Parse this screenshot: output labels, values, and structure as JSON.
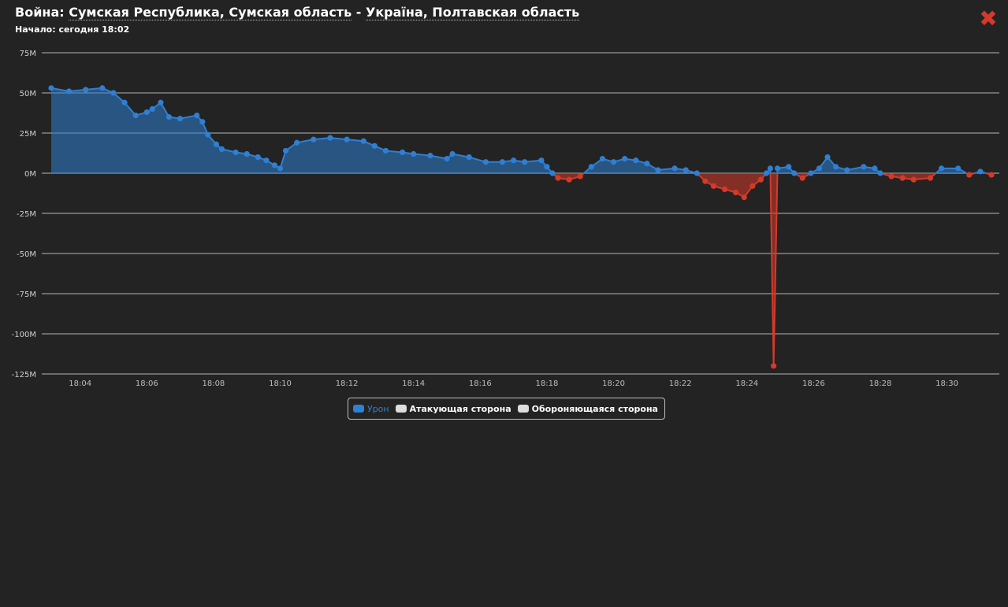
{
  "header": {
    "title_prefix": "Война: ",
    "attacker": "Сумская Республика, Сумская область",
    "separator": " - ",
    "defender": "Україна, Полтавская область",
    "start_text": "Начало: сегодня 18:02"
  },
  "close_icon": "close-x-icon",
  "colors": {
    "background": "#232323",
    "positive": "#2f7fd3",
    "negative": "#d43a2a",
    "grid": "#d0d0d0",
    "text": "#ffffff"
  },
  "legend": [
    {
      "label": "Урон",
      "color": "#2f7fd3"
    },
    {
      "label": "Атакующая сторона",
      "color": "#dddddd"
    },
    {
      "label": "Обороняющаяся сторона",
      "color": "#dddddd"
    }
  ],
  "chart_data": {
    "type": "area",
    "xlabel": "",
    "ylabel": "",
    "x_ticks": [
      "18:04",
      "18:06",
      "18:08",
      "18:10",
      "18:12",
      "18:14",
      "18:16",
      "18:18",
      "18:20",
      "18:22",
      "18:24",
      "18:26",
      "18:28",
      "18:30"
    ],
    "y_ticks": [
      "75M",
      "50M",
      "25M",
      "0M",
      "-25M",
      "-50M",
      "-75M",
      "-100M",
      "-125M"
    ],
    "xlim": [
      "18:03:08",
      "18:31:20"
    ],
    "ylim": [
      -125,
      75
    ],
    "grid": true,
    "legend_position": "bottom-center",
    "series": [
      {
        "name": "Урон",
        "units": "M",
        "points": [
          [
            "18:03:08",
            53
          ],
          [
            "18:03:40",
            51
          ],
          [
            "18:04:10",
            52
          ],
          [
            "18:04:40",
            53
          ],
          [
            "18:05:00",
            50
          ],
          [
            "18:05:20",
            44
          ],
          [
            "18:05:40",
            36
          ],
          [
            "18:06:00",
            38
          ],
          [
            "18:06:10",
            40
          ],
          [
            "18:06:25",
            44
          ],
          [
            "18:06:40",
            35
          ],
          [
            "18:07:00",
            34
          ],
          [
            "18:07:30",
            36
          ],
          [
            "18:07:40",
            32
          ],
          [
            "18:07:50",
            24
          ],
          [
            "18:08:05",
            18
          ],
          [
            "18:08:15",
            15
          ],
          [
            "18:08:40",
            13
          ],
          [
            "18:09:00",
            12
          ],
          [
            "18:09:20",
            10
          ],
          [
            "18:09:35",
            8
          ],
          [
            "18:09:50",
            5
          ],
          [
            "18:10:00",
            3
          ],
          [
            "18:10:10",
            14
          ],
          [
            "18:10:30",
            19
          ],
          [
            "18:11:00",
            21
          ],
          [
            "18:11:30",
            22
          ],
          [
            "18:12:00",
            21
          ],
          [
            "18:12:30",
            20
          ],
          [
            "18:12:50",
            17
          ],
          [
            "18:13:10",
            14
          ],
          [
            "18:13:40",
            13
          ],
          [
            "18:14:00",
            12
          ],
          [
            "18:14:30",
            11
          ],
          [
            "18:15:00",
            9
          ],
          [
            "18:15:10",
            12
          ],
          [
            "18:15:40",
            10
          ],
          [
            "18:16:10",
            7
          ],
          [
            "18:16:40",
            7
          ],
          [
            "18:17:00",
            8
          ],
          [
            "18:17:20",
            7
          ],
          [
            "18:17:50",
            8
          ],
          [
            "18:18:00",
            4
          ],
          [
            "18:18:10",
            0
          ],
          [
            "18:18:20",
            -3
          ],
          [
            "18:18:40",
            -4
          ],
          [
            "18:19:00",
            -2
          ],
          [
            "18:19:20",
            4
          ],
          [
            "18:19:40",
            9
          ],
          [
            "18:20:00",
            7
          ],
          [
            "18:20:20",
            9
          ],
          [
            "18:20:40",
            8
          ],
          [
            "18:21:00",
            6
          ],
          [
            "18:21:20",
            2
          ],
          [
            "18:21:50",
            3
          ],
          [
            "18:22:10",
            2
          ],
          [
            "18:22:30",
            0
          ],
          [
            "18:22:45",
            -5
          ],
          [
            "18:23:00",
            -8
          ],
          [
            "18:23:20",
            -10
          ],
          [
            "18:23:40",
            -12
          ],
          [
            "18:23:55",
            -15
          ],
          [
            "18:24:10",
            -8
          ],
          [
            "18:24:25",
            -4
          ],
          [
            "18:24:35",
            0
          ],
          [
            "18:24:42",
            3
          ],
          [
            "18:24:48",
            -120
          ],
          [
            "18:24:55",
            3
          ],
          [
            "18:25:15",
            4
          ],
          [
            "18:25:25",
            0
          ],
          [
            "18:25:40",
            -3
          ],
          [
            "18:25:55",
            0
          ],
          [
            "18:26:10",
            3
          ],
          [
            "18:26:25",
            10
          ],
          [
            "18:26:40",
            4
          ],
          [
            "18:27:00",
            2
          ],
          [
            "18:27:30",
            4
          ],
          [
            "18:27:50",
            3
          ],
          [
            "18:28:00",
            0
          ],
          [
            "18:28:20",
            -2
          ],
          [
            "18:28:40",
            -3
          ],
          [
            "18:29:00",
            -4
          ],
          [
            "18:29:30",
            -3
          ],
          [
            "18:29:50",
            3
          ],
          [
            "18:30:20",
            3
          ],
          [
            "18:30:40",
            -1
          ],
          [
            "18:31:00",
            1
          ],
          [
            "18:31:20",
            -1
          ]
        ]
      }
    ]
  }
}
